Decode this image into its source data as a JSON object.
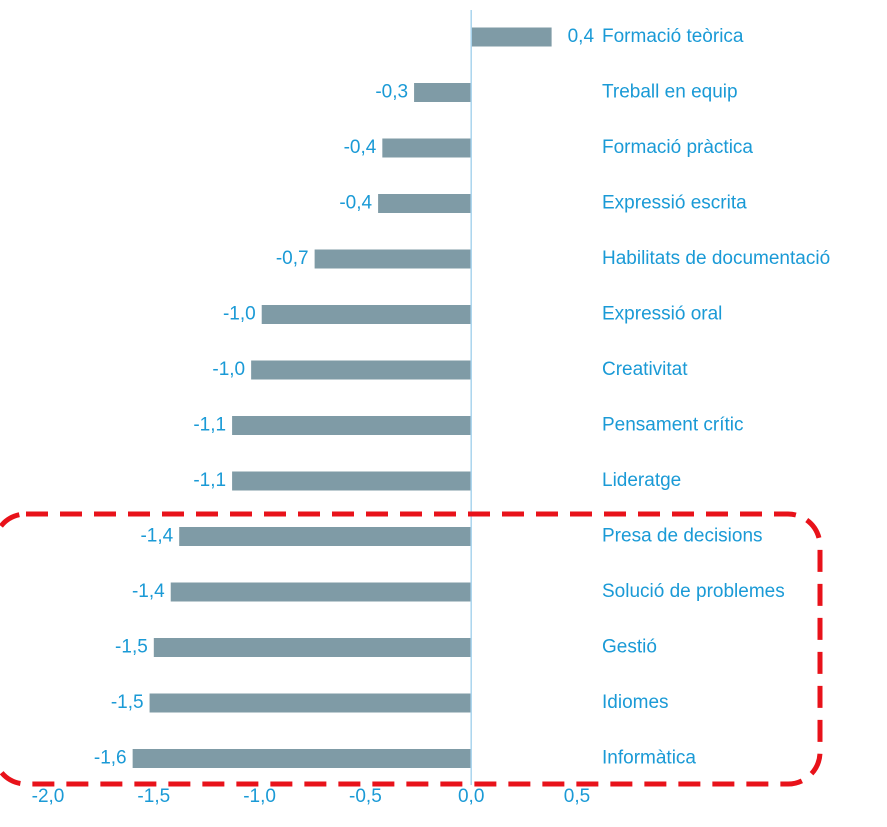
{
  "chart_data": {
    "type": "bar",
    "orientation": "horizontal",
    "categories": [
      "Formació teòrica",
      "Treball en equip",
      "Formació pràctica",
      "Expressió escrita",
      "Habilitats de documentació",
      "Expressió oral",
      "Creativitat",
      "Pensament crític",
      "Lideratge",
      "Presa de decisions",
      "Solució de problemes",
      "Gestió",
      "Idiomes",
      "Informàtica"
    ],
    "values": [
      0.38,
      -0.27,
      -0.42,
      -0.44,
      -0.74,
      -0.99,
      -1.04,
      -1.13,
      -1.13,
      -1.38,
      -1.42,
      -1.5,
      -1.52,
      -1.6
    ],
    "value_labels": [
      "0,4",
      "-0,3",
      "-0,4",
      "-0,4",
      "-0,7",
      "-1,0",
      "-1,0",
      "-1,1",
      "-1,1",
      "-1,4",
      "-1,4",
      "-1,5",
      "-1,5",
      "-1,6"
    ],
    "color": "#7f9ba6",
    "xlim": [
      -2.0,
      0.5
    ],
    "xticks": [
      {
        "value": -2.0,
        "label": "-2,0"
      },
      {
        "value": -1.5,
        "label": "-1,5"
      },
      {
        "value": -1.0,
        "label": "-1,0"
      },
      {
        "value": -0.5,
        "label": "-0,5"
      },
      {
        "value": 0.0,
        "label": "0,0"
      },
      {
        "value": 0.5,
        "label": "0,5"
      }
    ]
  }
}
